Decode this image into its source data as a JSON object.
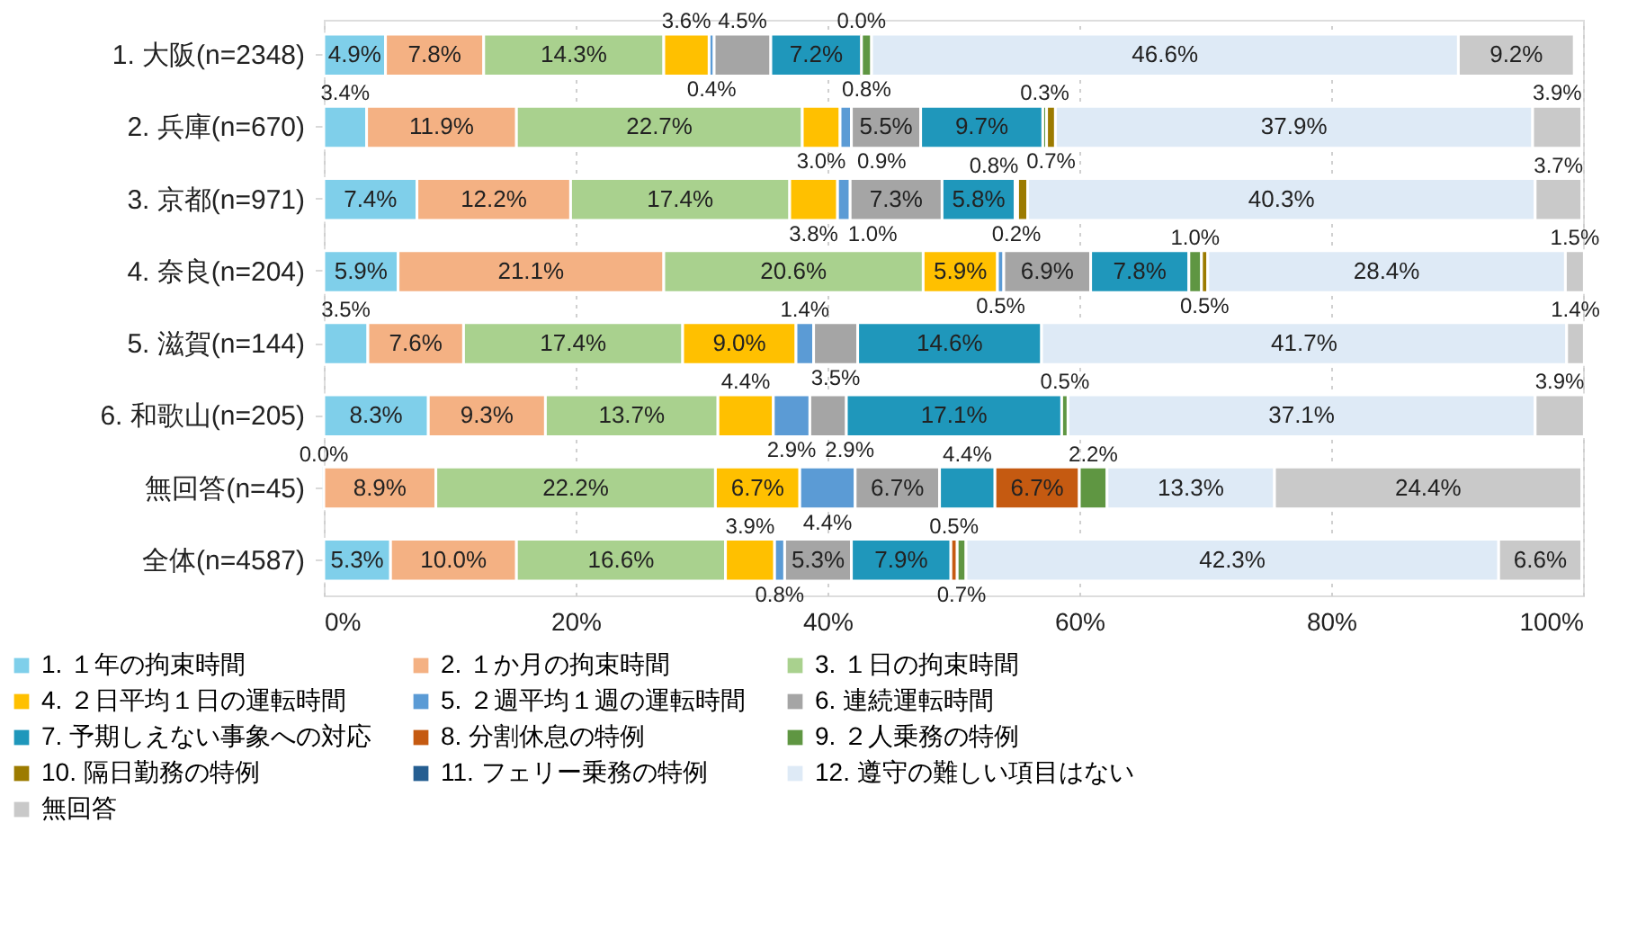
{
  "chart_data": {
    "type": "bar",
    "orientation": "horizontal",
    "stacked": true,
    "legend": "bottom",
    "grid": "x",
    "categories": [
      "1. 大阪(n=2348)",
      "2. 兵庫(n=670)",
      "3. 京都(n=971)",
      "4. 奈良(n=204)",
      "5. 滋賀(n=144)",
      "6. 和歌山(n=205)",
      "無回答(n=45)",
      "全体(n=4587)"
    ],
    "xlim": [
      0,
      100
    ],
    "xticks": [
      {
        "value": 0,
        "label": "0%"
      },
      {
        "value": 20,
        "label": "20%"
      },
      {
        "value": 40,
        "label": "40%"
      },
      {
        "value": 60,
        "label": "60%"
      },
      {
        "value": 80,
        "label": "80%"
      },
      {
        "value": 100,
        "label": "100%"
      }
    ],
    "series": [
      {
        "name": "1. １年の拘束時間",
        "color": "#7fcfea",
        "values": [
          4.9,
          3.4,
          7.4,
          5.9,
          3.5,
          8.3,
          0.0,
          5.3
        ],
        "value_labels": [
          "4.9%",
          "3.4%",
          "7.4%",
          "5.9%",
          "3.5%",
          "8.3%",
          "0.0%",
          "5.3%"
        ]
      },
      {
        "name": "2. １か月の拘束時間",
        "color": "#f4b183",
        "values": [
          7.8,
          11.9,
          12.2,
          21.1,
          7.6,
          9.3,
          8.9,
          10.0
        ],
        "value_labels": [
          "7.8%",
          "11.9%",
          "12.2%",
          "21.1%",
          "7.6%",
          "9.3%",
          "8.9%",
          "10.0%"
        ]
      },
      {
        "name": "3. １日の拘束時間",
        "color": "#a9d18e",
        "values": [
          14.3,
          22.7,
          17.4,
          20.6,
          17.4,
          13.7,
          22.2,
          16.6
        ],
        "value_labels": [
          "14.3%",
          "22.7%",
          "17.4%",
          "20.6%",
          "17.4%",
          "13.7%",
          "22.2%",
          "16.6%"
        ]
      },
      {
        "name": "4. ２日平均１日の運転時間",
        "color": "#ffc000",
        "values": [
          3.6,
          3.0,
          3.8,
          5.9,
          9.0,
          4.4,
          6.7,
          3.9
        ],
        "value_labels": [
          "3.6%",
          "3.0%",
          "3.8%",
          "5.9%",
          "9.0%",
          "4.4%",
          "6.7%",
          "3.9%"
        ]
      },
      {
        "name": "5. ２週平均１週の運転時間",
        "color": "#5b9bd5",
        "values": [
          0.4,
          0.9,
          1.0,
          0.5,
          1.4,
          2.9,
          4.4,
          0.8
        ],
        "value_labels": [
          "0.4%",
          "0.9%",
          "1.0%",
          "0.5%",
          "1.4%",
          "2.9%",
          "4.4%",
          "0.8%"
        ]
      },
      {
        "name": "6. 連続運転時間",
        "color": "#a5a5a5",
        "values": [
          4.5,
          5.5,
          7.3,
          6.9,
          3.5,
          2.9,
          6.7,
          5.3
        ],
        "value_labels": [
          "4.5%",
          "5.5%",
          "7.3%",
          "6.9%",
          "3.5%",
          "2.9%",
          "6.7%",
          "5.3%"
        ]
      },
      {
        "name": "7. 予期しえない事象への対応",
        "color": "#1f97bb",
        "values": [
          7.2,
          9.7,
          5.8,
          7.8,
          14.6,
          17.1,
          4.4,
          7.9
        ],
        "value_labels": [
          "7.2%",
          "9.7%",
          "5.8%",
          "7.8%",
          "14.6%",
          "17.1%",
          "4.4%",
          "7.9%"
        ]
      },
      {
        "name": "8. 分割休息の特例",
        "color": "#c55a11",
        "values": [
          0.0,
          null,
          null,
          null,
          null,
          null,
          6.7,
          0.5
        ],
        "value_labels": [
          "0.0%",
          null,
          null,
          null,
          null,
          null,
          "6.7%",
          "0.5%"
        ]
      },
      {
        "name": "9. ２人乗務の特例",
        "color": "#5f9642",
        "values": [
          0.8,
          0.3,
          0.2,
          1.0,
          null,
          0.5,
          2.2,
          0.7
        ],
        "value_labels": [
          "0.8%",
          "0.3%",
          "0.2%",
          "1.0%",
          null,
          "0.5%",
          "2.2%",
          "0.7%"
        ]
      },
      {
        "name": "10. 隔日勤務の特例",
        "color": "#9c7b00",
        "values": [
          null,
          0.7,
          0.8,
          0.5,
          null,
          null,
          null,
          null
        ],
        "value_labels": [
          null,
          "0.7%",
          "0.8%",
          "0.5%",
          null,
          null,
          null,
          null
        ]
      },
      {
        "name": "11. フェリー乗務の特例",
        "color": "#255e91",
        "values": [
          null,
          null,
          null,
          null,
          null,
          null,
          null,
          null
        ],
        "value_labels": [
          null,
          null,
          null,
          null,
          null,
          null,
          null,
          null
        ]
      },
      {
        "name": "12. 遵守の難しい項目はない",
        "color": "#deeaf6",
        "values": [
          46.6,
          37.9,
          40.3,
          28.4,
          41.7,
          37.1,
          13.3,
          42.3
        ],
        "value_labels": [
          "46.6%",
          "37.9%",
          "40.3%",
          "28.4%",
          "41.7%",
          "37.1%",
          "13.3%",
          "42.3%"
        ]
      },
      {
        "name": "無回答",
        "color": "#c9c9c9",
        "values": [
          9.2,
          3.9,
          3.7,
          1.5,
          1.4,
          3.9,
          24.4,
          6.6
        ],
        "value_labels": [
          "9.2%",
          "3.9%",
          "3.7%",
          "1.5%",
          "1.4%",
          "3.9%",
          "24.4%",
          "6.6%"
        ]
      }
    ]
  }
}
